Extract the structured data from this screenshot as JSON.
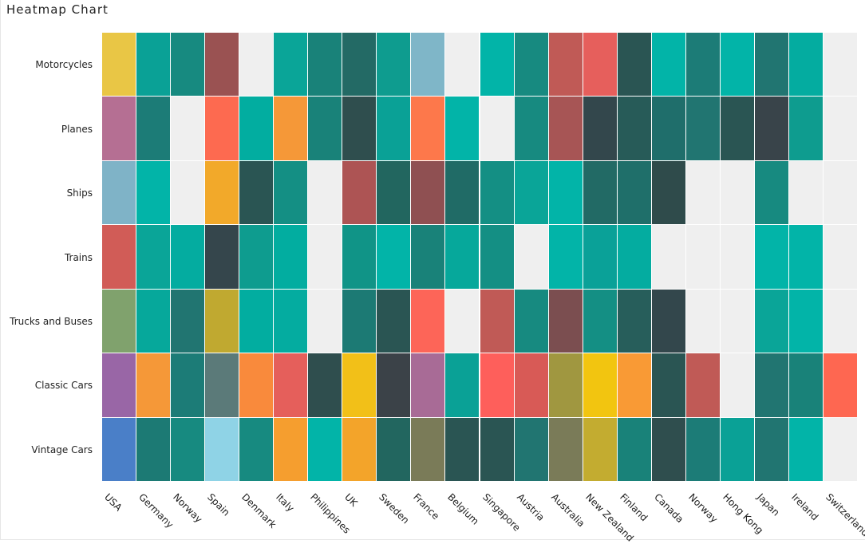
{
  "chart_data": {
    "type": "heatmap",
    "title": "Heatmap Chart",
    "x_categories": [
      "USA",
      "Germany",
      "Norway",
      "Spain",
      "Denmark",
      "Italy",
      "Philippines",
      "UK",
      "Sweden",
      "France",
      "Belgium",
      "Singapore",
      "Austria",
      "Australia",
      "New Zealand",
      "Finland",
      "Canada",
      "Norway",
      "Hong Kong",
      "Japan",
      "Ireland",
      "Switzerland"
    ],
    "y_categories": [
      "Motorcycles",
      "Planes",
      "Ships",
      "Trains",
      "Trucks and Buses",
      "Classic Cars",
      "Vintage Cars"
    ],
    "empty_color": "#efefef",
    "cell_colors": [
      [
        "#e9c645",
        "#0aa196",
        "#178a80",
        "#9a5252",
        null,
        "#0aa598",
        "#198279",
        "#236a65",
        "#0e9c8f",
        "#7fb6c8",
        null,
        "#02b4a8",
        "#178a80",
        "#c05a56",
        "#e65f5c",
        "#2a5553",
        "#02b4a8",
        "#1c7c77",
        "#02b4a8",
        "#217571",
        "#04aca0",
        null
      ],
      [
        "#b56f93",
        "#1c7c77",
        null,
        "#fd6a50",
        "#02ada0",
        "#f59838",
        "#198279",
        "#2f4e4e",
        "#0aa196",
        "#fd784b",
        "#02b4a8",
        null,
        "#178a80",
        "#a75555",
        "#33474c",
        "#275b58",
        "#1f6e6b",
        "#217571",
        "#2a5553",
        "#39444a",
        "#0e9c8f",
        null
      ],
      [
        "#7fb3c7",
        "#02b4a8",
        null,
        "#f2a92a",
        "#2a5553",
        "#148f84",
        null,
        "#ad5454",
        "#22665f",
        "#8f5052",
        "#206b66",
        "#148f84",
        "#0aa598",
        "#02b4a8",
        "#226a65",
        "#1f6f6a",
        "#2f4b4b",
        null,
        null,
        "#178a80",
        null,
        null
      ],
      [
        "#d15c57",
        "#0aa598",
        "#04aca0",
        "#35464c",
        "#0e9c8f",
        "#02ada0",
        null,
        "#109487",
        "#02b4a8",
        "#198279",
        "#06a89b",
        "#148f84",
        null,
        "#02b4a8",
        "#0aa198",
        "#04aca0",
        null,
        null,
        null,
        "#02b4a8",
        "#02b4a8",
        null
      ],
      [
        "#80a26d",
        "#06a89b",
        "#217571",
        "#c0a930",
        "#02ada0",
        "#04aca0",
        null,
        "#1c7a74",
        "#2a5553",
        "#fd6558",
        null,
        "#c05a56",
        "#178a80",
        "#7b4e50",
        "#148f84",
        "#275e5b",
        "#33474c",
        null,
        null,
        "#0aa598",
        "#02b4a8",
        null
      ],
      [
        "#9966a6",
        "#f59838",
        "#1c7c77",
        "#5b7a79",
        "#f98a3c",
        "#e55f5b",
        "#2f4e4e",
        "#f2c018",
        "#3b4248",
        "#a86b96",
        "#0aa196",
        "#fe5f5b",
        "#d85a56",
        "#a09740",
        "#f2c510",
        "#f99a35",
        "#2a5553",
        "#c05a56",
        null,
        "#217571",
        "#198279",
        "#fe6751"
      ],
      [
        "#4a7fc8",
        "#1c7a74",
        "#178a80",
        "#8fd3e6",
        "#178a80",
        "#f59e2f",
        "#02b4a8",
        "#f3a42a",
        "#22665f",
        "#7a7b58",
        "#2a5553",
        "#2a5553",
        "#217571",
        "#7a7b58",
        "#c3ac30",
        "#198279",
        "#2f4e4e",
        "#1c7c77",
        "#0aa196",
        "#217571",
        "#02b4a8",
        null
      ]
    ]
  }
}
